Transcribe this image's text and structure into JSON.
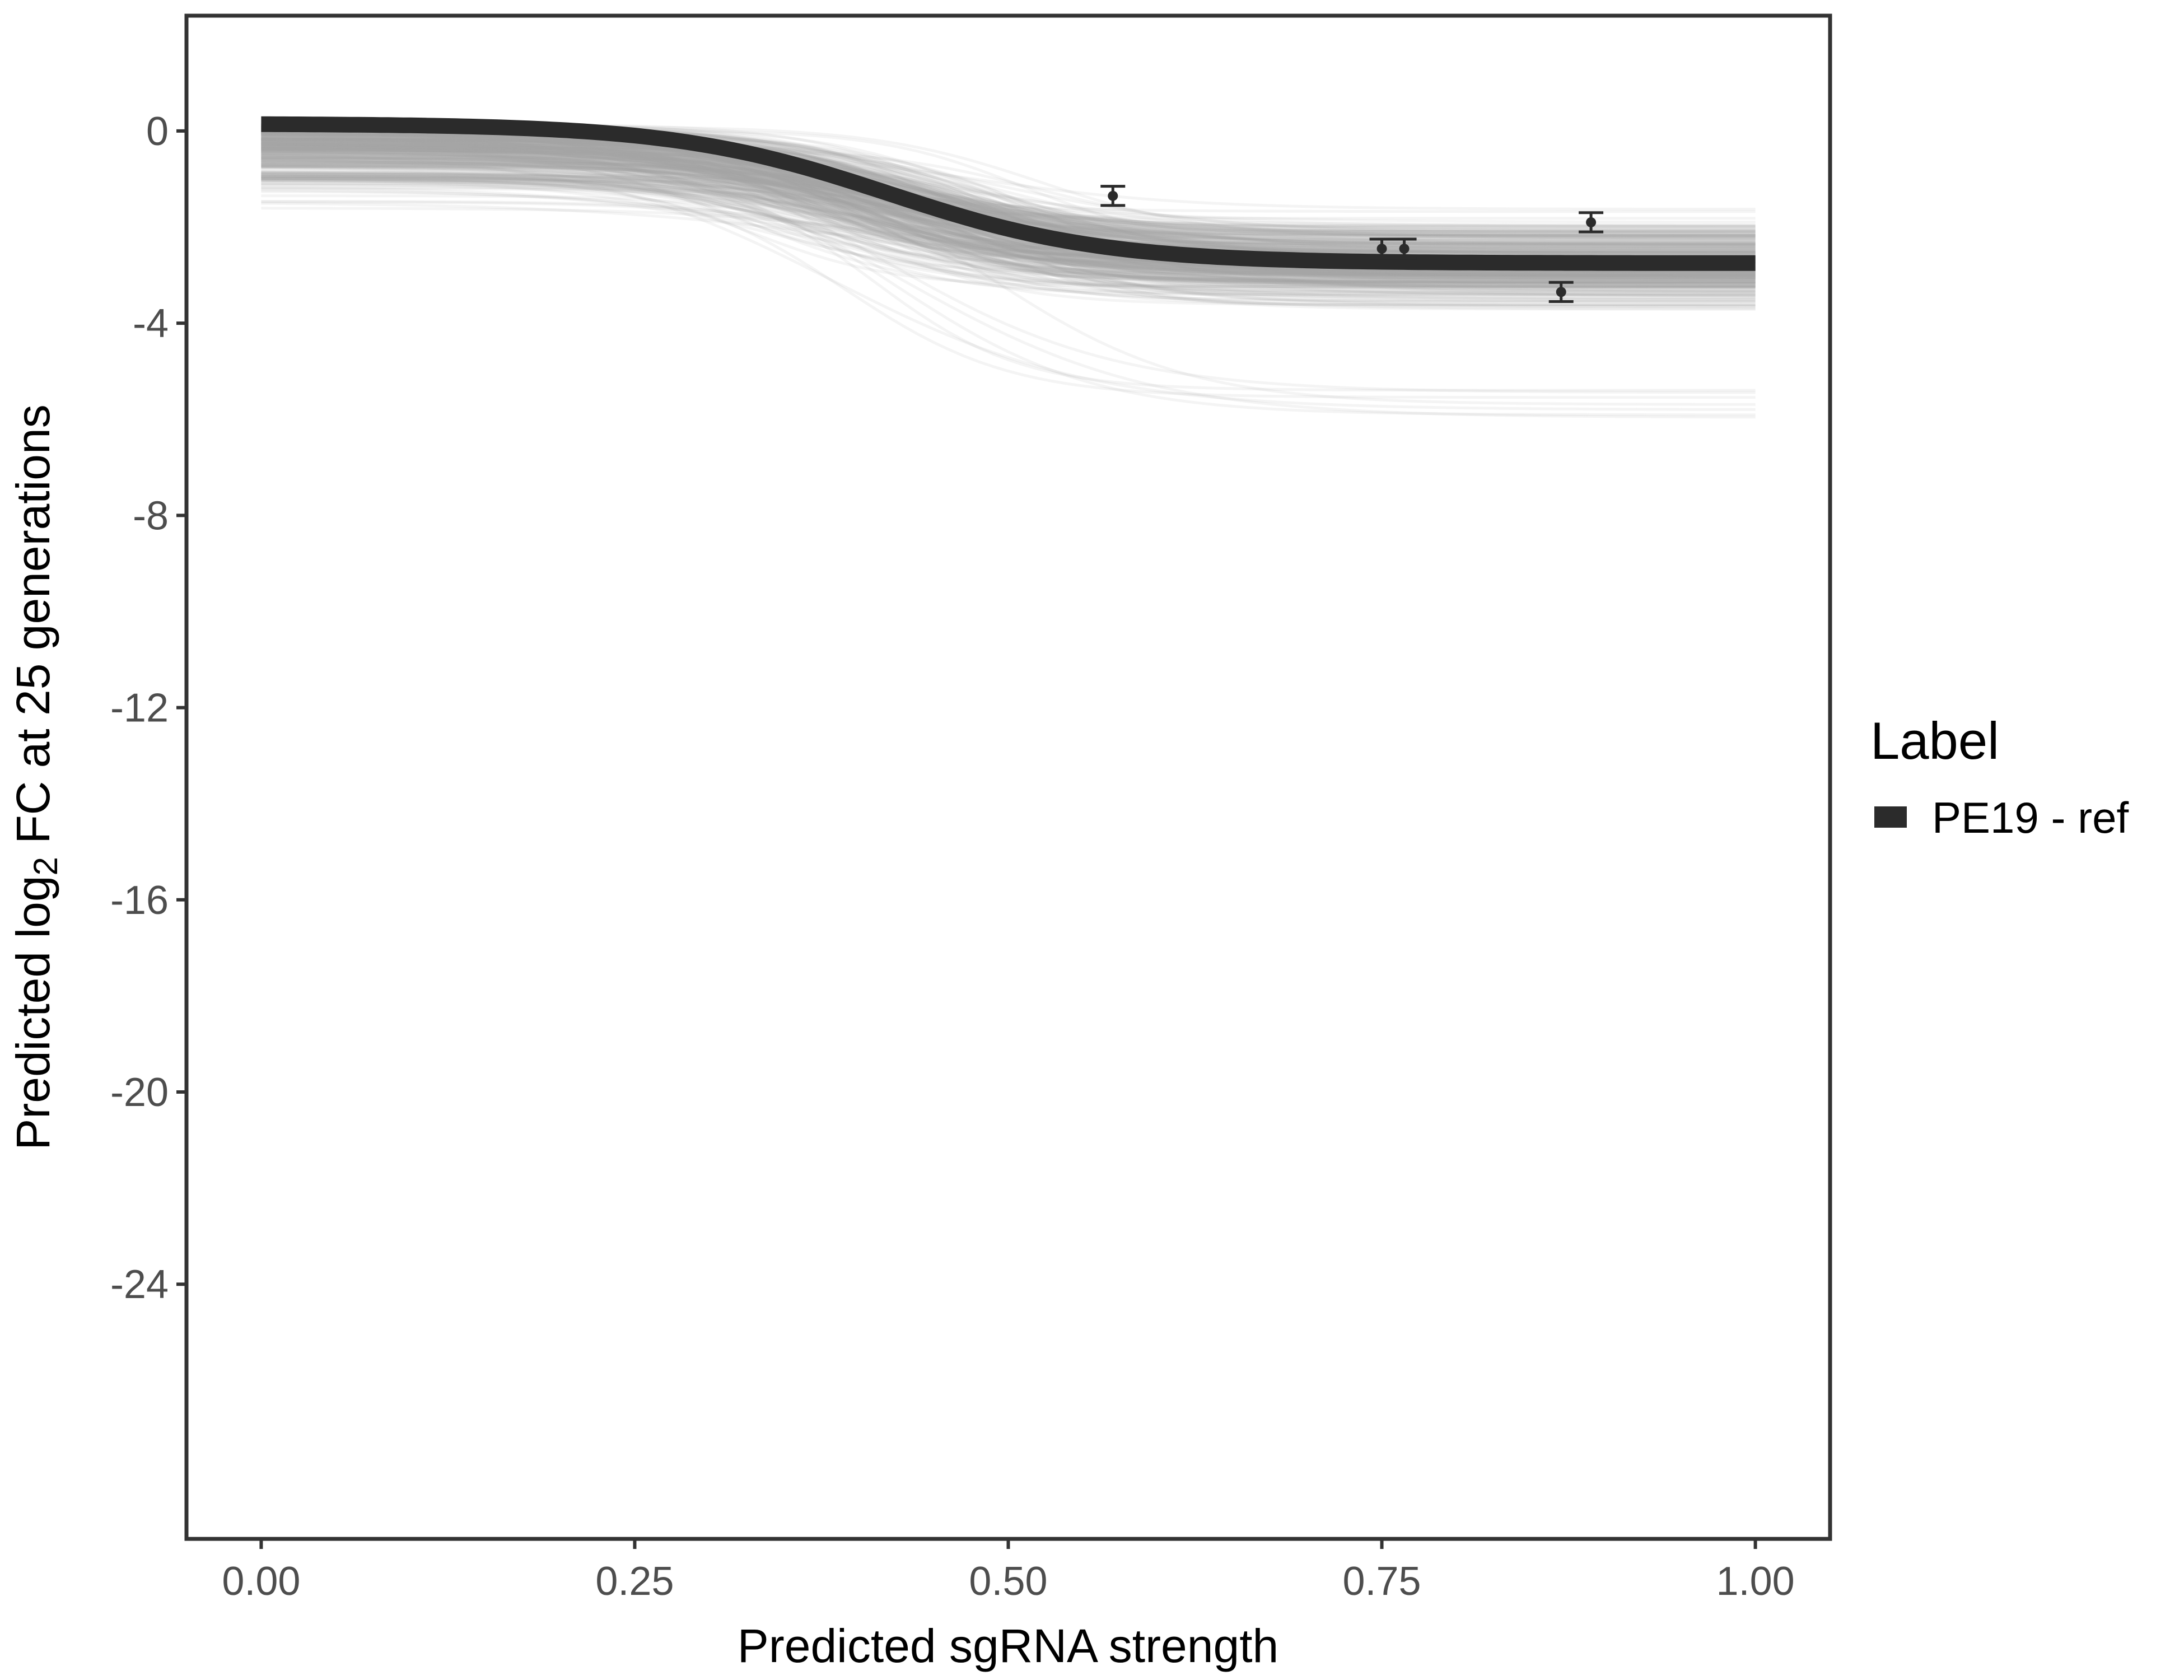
{
  "chart_data": {
    "type": "line",
    "xlabel": "Predicted sgRNA strength",
    "ylabel": {
      "prefix": "Predicted  log",
      "subscript": "2",
      "suffix": " FC at 25 generations"
    },
    "xlim": [
      -0.05,
      1.05
    ],
    "ylim": [
      -29.3,
      2.4
    ],
    "x_ticks": [
      0.0,
      0.25,
      0.5,
      0.75,
      1.0
    ],
    "x_tick_labels": [
      "0.00",
      "0.25",
      "0.50",
      "0.75",
      "1.00"
    ],
    "y_ticks": [
      0,
      -4,
      -8,
      -12,
      -16,
      -20,
      -24
    ],
    "y_tick_labels": [
      "0",
      "-4",
      "-8",
      "-12",
      "-16",
      "-20",
      "-24"
    ],
    "grid": false,
    "legend": {
      "title": "Label",
      "position": "right",
      "entries": [
        {
          "label": "PE19 - ref",
          "color": "#2b2b2b"
        }
      ]
    },
    "series": [
      {
        "name": "PE19 - ref",
        "color": "#2b2b2b",
        "model": "sigmoid",
        "upper": 0.15,
        "lower": -2.75,
        "midpoint": 0.42,
        "steepness": 14,
        "x": [
          0.0,
          0.1,
          0.2,
          0.3,
          0.4,
          0.5,
          0.6,
          0.7,
          0.8,
          0.9,
          1.0
        ],
        "y": [
          0.15,
          0.1,
          -0.05,
          -0.45,
          -1.2,
          -2.0,
          -2.45,
          -2.65,
          -2.72,
          -2.74,
          -2.75
        ]
      }
    ],
    "posterior_draws": {
      "color": "#a8a8a8",
      "count": 400,
      "upper_range": [
        -3.3,
        0.15
      ],
      "lower_range": [
        -6.1,
        -0.7
      ]
    },
    "points": [
      {
        "x": 0.57,
        "y": -1.35,
        "ymin": -1.55,
        "ymax": -1.15
      },
      {
        "x": 0.75,
        "y": -2.45,
        "ymin": -2.65,
        "ymax": -2.25
      },
      {
        "x": 0.765,
        "y": -2.45,
        "ymin": -2.65,
        "ymax": -2.25
      },
      {
        "x": 0.87,
        "y": -3.35,
        "ymin": -3.55,
        "ymax": -3.15
      },
      {
        "x": 0.89,
        "y": -1.9,
        "ymin": -2.1,
        "ymax": -1.7
      }
    ]
  }
}
